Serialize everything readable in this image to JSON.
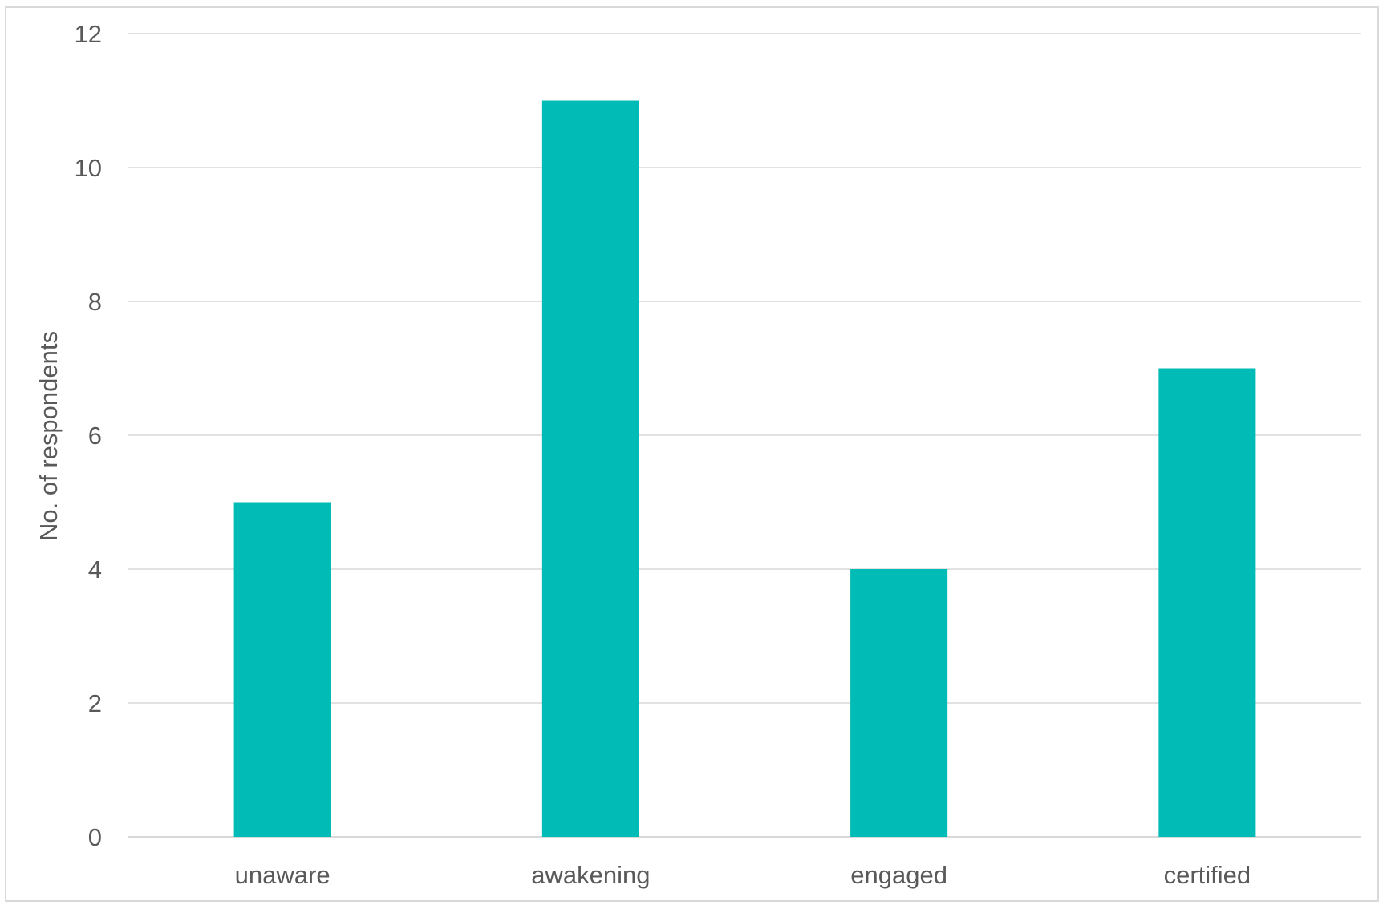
{
  "chart_data": {
    "type": "bar",
    "title": "",
    "xlabel": "",
    "ylabel": "No. of respondents",
    "categories": [
      "unaware",
      "awakening",
      "engaged",
      "certified"
    ],
    "values": [
      5,
      11,
      4,
      7
    ],
    "ylim": [
      0,
      12
    ],
    "yticks": [
      "0",
      "2",
      "4",
      "6",
      "8",
      "10",
      "12"
    ],
    "grid": true,
    "legend": "none",
    "bar_color": "#00BBB6"
  }
}
